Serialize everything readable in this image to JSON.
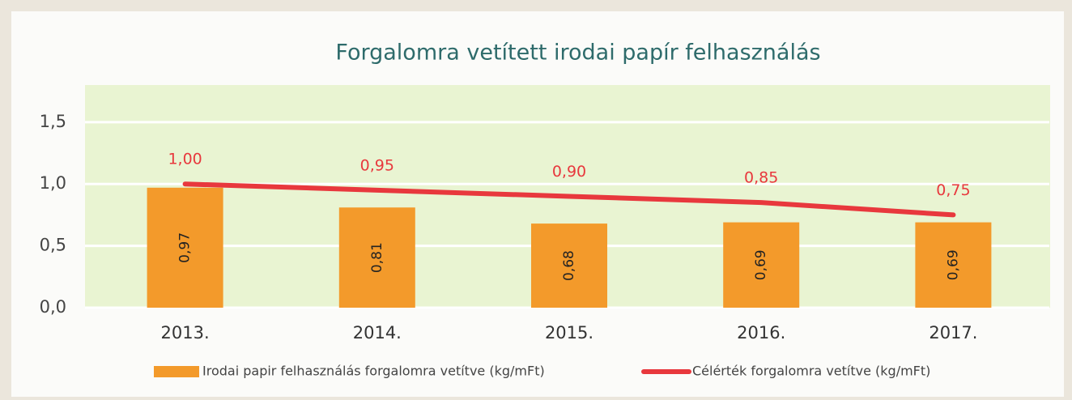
{
  "chart_data": {
    "type": "bar",
    "title": "Forgalomra vetített irodai papír felhasználás",
    "categories": [
      "2013.",
      "2014.",
      "2015.",
      "2016.",
      "2017."
    ],
    "series": [
      {
        "name": "Irodai papir felhasználás forgalomra vetítve (kg/mFt)",
        "type": "bar",
        "color": "#f39a2b",
        "values": [
          0.97,
          0.81,
          0.68,
          0.69,
          0.69
        ],
        "value_labels": [
          "0,97",
          "0,81",
          "0,68",
          "0,69",
          "0,69"
        ]
      },
      {
        "name": "Célérték forgalomra vetítve (kg/mFt)",
        "type": "line",
        "color": "#e8383d",
        "values": [
          1.0,
          0.95,
          0.9,
          0.85,
          0.75
        ],
        "value_labels": [
          "1,00",
          "0,95",
          "0,90",
          "0,85",
          "0,75"
        ]
      }
    ],
    "ylim": [
      0,
      1.8
    ],
    "yticks": [
      {
        "value": 0,
        "label": "0,0"
      },
      {
        "value": 0.5,
        "label": "0,5"
      },
      {
        "value": 1.0,
        "label": "1,0"
      },
      {
        "value": 1.5,
        "label": "1,5"
      }
    ],
    "grid": true,
    "legend": "bottom"
  }
}
